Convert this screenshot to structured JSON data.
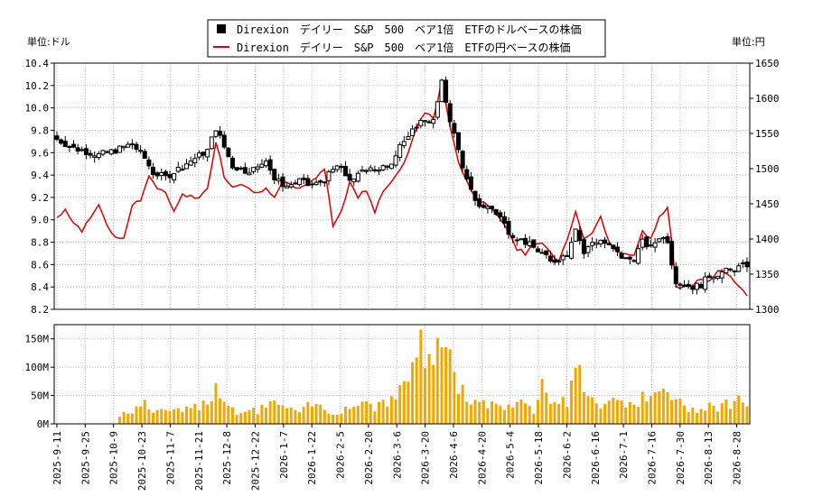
{
  "chart_data": [
    {
      "type": "candlestick",
      "legend": [
        {
          "label": "Direxion　デイリー　S&P　500　ベア1倍　ETFのドルベースの株価",
          "color": "#000000"
        },
        {
          "label": "Direxion　デイリー　S&P　500　ベア1倍　ETFの円ベースの株価",
          "color": "#dd0000"
        }
      ],
      "y_left_unit": "単位:ドル",
      "y_right_unit": "単位:円",
      "y_left_range": [
        8.2,
        10.4
      ],
      "y_left_ticks": [
        "8.2",
        "8.4",
        "8.6",
        "8.8",
        "9.0",
        "9.2",
        "9.4",
        "9.6",
        "9.8",
        "10.0",
        "10.2",
        "10.4"
      ],
      "y_right_range": [
        1300,
        1650
      ],
      "y_right_ticks": [
        "1300",
        "1350",
        "1400",
        "1450",
        "1500",
        "1550",
        "1600",
        "1650"
      ],
      "x_ticks": [
        "2025-9-11",
        "2025-9-25",
        "2025-10-9",
        "2025-10-23",
        "2025-11-7",
        "2025-11-21",
        "2025-12-8",
        "2025-12-22",
        "2026-1-7",
        "2026-1-22",
        "2026-2-5",
        "2026-2-20",
        "2026-3-6",
        "2026-3-20",
        "2026-4-6",
        "2026-4-20",
        "2026-5-4",
        "2026-5-18",
        "2026-6-2",
        "2026-6-16",
        "2026-7-1",
        "2026-7-16",
        "2026-7-30",
        "2026-8-13",
        "2026-8-28"
      ],
      "usd_close_keypoints": [
        [
          0,
          9.72
        ],
        [
          4,
          9.64
        ],
        [
          8,
          9.6
        ],
        [
          10,
          9.58
        ],
        [
          14,
          9.62
        ],
        [
          18,
          9.68
        ],
        [
          21,
          9.55
        ],
        [
          23,
          9.42
        ],
        [
          26,
          9.38
        ],
        [
          30,
          9.48
        ],
        [
          33,
          9.55
        ],
        [
          36,
          9.62
        ],
        [
          38,
          9.82
        ],
        [
          40,
          9.65
        ],
        [
          42,
          9.48
        ],
        [
          45,
          9.44
        ],
        [
          48,
          9.46
        ],
        [
          50,
          9.55
        ],
        [
          52,
          9.36
        ],
        [
          55,
          9.3
        ],
        [
          58,
          9.35
        ],
        [
          60,
          9.31
        ],
        [
          62,
          9.32
        ],
        [
          64,
          9.36
        ],
        [
          67,
          9.48
        ],
        [
          69,
          9.4
        ],
        [
          71,
          9.34
        ],
        [
          73,
          9.45
        ],
        [
          75,
          9.48
        ],
        [
          77,
          9.43
        ],
        [
          80,
          9.52
        ],
        [
          82,
          9.68
        ],
        [
          84,
          9.72
        ],
        [
          86,
          9.85
        ],
        [
          88,
          9.9
        ],
        [
          90,
          9.88
        ],
        [
          92,
          10.22
        ],
        [
          94,
          9.9
        ],
        [
          96,
          9.62
        ],
        [
          98,
          9.35
        ],
        [
          100,
          9.15
        ],
        [
          102,
          9.12
        ],
        [
          104,
          9.1
        ],
        [
          106,
          9.02
        ],
        [
          108,
          8.9
        ],
        [
          110,
          8.84
        ],
        [
          112,
          8.8
        ],
        [
          114,
          8.75
        ],
        [
          116,
          8.7
        ],
        [
          118,
          8.62
        ],
        [
          120,
          8.65
        ],
        [
          122,
          8.7
        ],
        [
          124,
          8.94
        ],
        [
          126,
          8.7
        ],
        [
          128,
          8.8
        ],
        [
          130,
          8.82
        ],
        [
          132,
          8.76
        ],
        [
          134,
          8.7
        ],
        [
          136,
          8.64
        ],
        [
          138,
          8.66
        ],
        [
          140,
          8.8
        ],
        [
          142,
          8.75
        ],
        [
          144,
          8.85
        ],
        [
          146,
          8.82
        ],
        [
          147,
          8.62
        ],
        [
          148,
          8.46
        ],
        [
          150,
          8.42
        ],
        [
          152,
          8.4
        ],
        [
          154,
          8.42
        ],
        [
          156,
          8.5
        ],
        [
          158,
          8.52
        ],
        [
          160,
          8.54
        ],
        [
          162,
          8.56
        ],
        [
          165,
          8.6
        ]
      ],
      "jpy_close_keypoints": [
        [
          0,
          1430
        ],
        [
          2,
          1440
        ],
        [
          4,
          1425
        ],
        [
          6,
          1410
        ],
        [
          8,
          1430
        ],
        [
          10,
          1450
        ],
        [
          12,
          1420
        ],
        [
          14,
          1400
        ],
        [
          16,
          1402
        ],
        [
          18,
          1450
        ],
        [
          20,
          1455
        ],
        [
          22,
          1490
        ],
        [
          24,
          1470
        ],
        [
          26,
          1465
        ],
        [
          28,
          1440
        ],
        [
          30,
          1465
        ],
        [
          32,
          1460
        ],
        [
          34,
          1460
        ],
        [
          36,
          1470
        ],
        [
          38,
          1540
        ],
        [
          40,
          1490
        ],
        [
          42,
          1475
        ],
        [
          44,
          1480
        ],
        [
          46,
          1470
        ],
        [
          48,
          1465
        ],
        [
          50,
          1475
        ],
        [
          52,
          1460
        ],
        [
          54,
          1480
        ],
        [
          56,
          1475
        ],
        [
          58,
          1470
        ],
        [
          60,
          1480
        ],
        [
          62,
          1485
        ],
        [
          64,
          1500
        ],
        [
          66,
          1420
        ],
        [
          68,
          1440
        ],
        [
          70,
          1480
        ],
        [
          72,
          1460
        ],
        [
          74,
          1470
        ],
        [
          76,
          1440
        ],
        [
          78,
          1470
        ],
        [
          80,
          1480
        ],
        [
          82,
          1500
        ],
        [
          84,
          1520
        ],
        [
          86,
          1560
        ],
        [
          88,
          1580
        ],
        [
          90,
          1570
        ],
        [
          92,
          1625
        ],
        [
          94,
          1560
        ],
        [
          96,
          1510
        ],
        [
          98,
          1480
        ],
        [
          100,
          1460
        ],
        [
          102,
          1450
        ],
        [
          104,
          1445
        ],
        [
          106,
          1430
        ],
        [
          108,
          1410
        ],
        [
          110,
          1385
        ],
        [
          112,
          1380
        ],
        [
          114,
          1390
        ],
        [
          116,
          1395
        ],
        [
          118,
          1380
        ],
        [
          120,
          1370
        ],
        [
          122,
          1400
        ],
        [
          124,
          1440
        ],
        [
          126,
          1400
        ],
        [
          128,
          1410
        ],
        [
          130,
          1430
        ],
        [
          132,
          1395
        ],
        [
          134,
          1385
        ],
        [
          136,
          1380
        ],
        [
          138,
          1375
        ],
        [
          140,
          1410
        ],
        [
          142,
          1400
        ],
        [
          144,
          1430
        ],
        [
          146,
          1445
        ],
        [
          147,
          1395
        ],
        [
          148,
          1330
        ],
        [
          150,
          1332
        ],
        [
          152,
          1335
        ],
        [
          154,
          1345
        ],
        [
          156,
          1340
        ],
        [
          158,
          1355
        ],
        [
          160,
          1352
        ],
        [
          162,
          1340
        ],
        [
          164,
          1325
        ],
        [
          165,
          1318
        ]
      ]
    },
    {
      "type": "bar",
      "name": "volume",
      "ylim": [
        0,
        175
      ],
      "y_ticks": [
        "0M",
        "50M",
        "100M",
        "150M"
      ],
      "bar_color": "#f0a800",
      "volume_keypoints_M": [
        [
          0,
          0
        ],
        [
          14,
          0
        ],
        [
          15,
          15
        ],
        [
          18,
          25
        ],
        [
          21,
          35
        ],
        [
          24,
          20
        ],
        [
          27,
          25
        ],
        [
          30,
          20
        ],
        [
          33,
          30
        ],
        [
          36,
          40
        ],
        [
          38,
          70
        ],
        [
          40,
          45
        ],
        [
          42,
          25
        ],
        [
          44,
          20
        ],
        [
          46,
          25
        ],
        [
          48,
          20
        ],
        [
          50,
          35
        ],
        [
          52,
          40
        ],
        [
          55,
          25
        ],
        [
          58,
          20
        ],
        [
          60,
          30
        ],
        [
          62,
          35
        ],
        [
          64,
          25
        ],
        [
          66,
          20
        ],
        [
          68,
          25
        ],
        [
          70,
          30
        ],
        [
          72,
          35
        ],
        [
          74,
          40
        ],
        [
          76,
          30
        ],
        [
          78,
          45
        ],
        [
          80,
          40
        ],
        [
          82,
          60
        ],
        [
          84,
          80
        ],
        [
          86,
          150
        ],
        [
          88,
          110
        ],
        [
          90,
          120
        ],
        [
          92,
          150
        ],
        [
          94,
          110
        ],
        [
          96,
          70
        ],
        [
          98,
          40
        ],
        [
          100,
          50
        ],
        [
          102,
          35
        ],
        [
          104,
          40
        ],
        [
          106,
          30
        ],
        [
          108,
          35
        ],
        [
          110,
          40
        ],
        [
          112,
          30
        ],
        [
          114,
          25
        ],
        [
          116,
          90
        ],
        [
          118,
          50
        ],
        [
          120,
          35
        ],
        [
          122,
          40
        ],
        [
          124,
          130
        ],
        [
          126,
          45
        ],
        [
          128,
          40
        ],
        [
          130,
          35
        ],
        [
          132,
          50
        ],
        [
          134,
          45
        ],
        [
          136,
          40
        ],
        [
          138,
          35
        ],
        [
          140,
          45
        ],
        [
          142,
          40
        ],
        [
          144,
          55
        ],
        [
          146,
          60
        ],
        [
          148,
          40
        ],
        [
          150,
          30
        ],
        [
          152,
          25
        ],
        [
          154,
          30
        ],
        [
          156,
          35
        ],
        [
          158,
          30
        ],
        [
          160,
          35
        ],
        [
          162,
          40
        ],
        [
          164,
          45
        ],
        [
          165,
          35
        ]
      ]
    }
  ]
}
